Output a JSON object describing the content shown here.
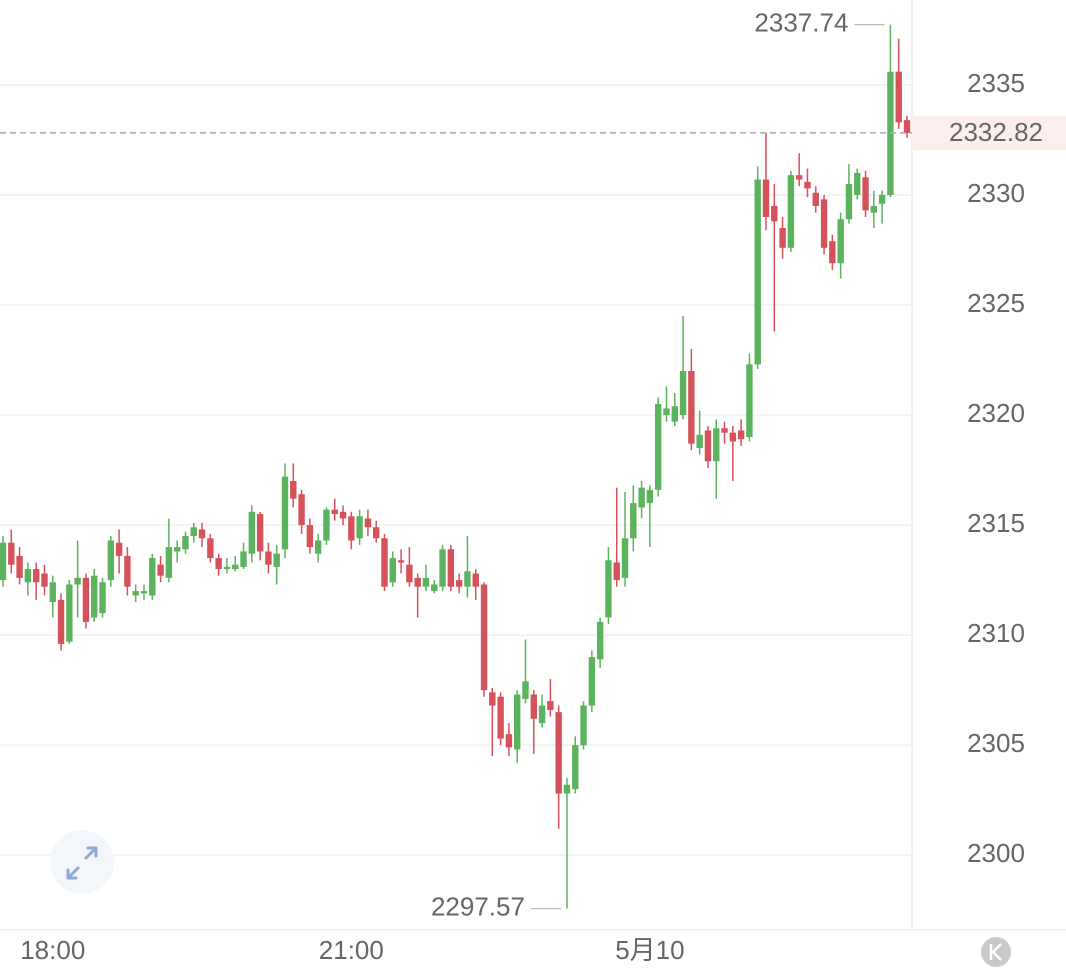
{
  "chart_data": {
    "type": "candlestick",
    "categories": [
      null,
      null,
      null,
      null,
      null,
      null,
      "18:00",
      null,
      null,
      null,
      null,
      null,
      null,
      null,
      null,
      null,
      null,
      null,
      null,
      null,
      null,
      null,
      null,
      null,
      null,
      null,
      null,
      null,
      null,
      null,
      null,
      null,
      null,
      null,
      null,
      null,
      null,
      null,
      null,
      null,
      null,
      null,
      "21:00",
      null,
      null,
      null,
      null,
      null,
      null,
      null,
      null,
      null,
      null,
      null,
      null,
      null,
      null,
      null,
      null,
      null,
      null,
      null,
      null,
      null,
      null,
      null,
      null,
      null,
      null,
      null,
      null,
      null,
      null,
      null,
      null,
      null,
      null,
      null,
      "5月10",
      null,
      null,
      null,
      null,
      null,
      null,
      null,
      null,
      null,
      null,
      null,
      null,
      null,
      null,
      null,
      null,
      null,
      null,
      null,
      null,
      null,
      null,
      null,
      null,
      null,
      null,
      null,
      null,
      null,
      null,
      null
    ],
    "open": [
      2312.5,
      2314.2,
      2313.6,
      2312.4,
      2313,
      2312.8,
      2311.5,
      2311.6,
      2309.7,
      2312.3,
      2312.6,
      2310.8,
      2311,
      2312.5,
      2314.2,
      2313.6,
      2311.8,
      2311.9,
      2311.8,
      2313.2,
      2312.6,
      2313.8,
      2313.9,
      2314.5,
      2314.8,
      2314.4,
      2313.5,
      2313,
      2313,
      2313.1,
      2313.7,
      2315.5,
      2313.8,
      2313.1,
      2313.9,
      2317,
      2316.4,
      2315,
      2313.7,
      2314.3,
      2315.7,
      2315.6,
      2315.4,
      2314.4,
      2315.3,
      2314.9,
      2314.4,
      2312.4,
      2313.4,
      2313.2,
      2312.6,
      2312.2,
      2312,
      2312.2,
      2313.9,
      2312.5,
      2312.2,
      2312.8,
      2312.3,
      2307.4,
      2307.2,
      2305.5,
      2304.8,
      2307.1,
      2307.3,
      2306,
      2307,
      2306.5,
      2302.8,
      2303,
      2305,
      2306.8,
      2308.9,
      2310.8,
      2313.3,
      2312.6,
      2314.4,
      2315.8,
      2316,
      2316.6,
      2320,
      2319.7,
      2320,
      2322,
      2318.5,
      2319.3,
      2317.9,
      2319.4,
      2319.2,
      2319.3,
      2319,
      2322.3,
      2330.7,
      2329.5,
      2328.5,
      2327.6,
      2330.9,
      2330.6,
      2330.1,
      2329.8,
      2327.9,
      2326.9,
      2328.9,
      2330,
      2330.8,
      2329.2,
      2329.6,
      2330,
      2335.6,
      2333.4
    ],
    "high": [
      2314.5,
      2314.8,
      2314,
      2313.3,
      2313.3,
      2313.2,
      2312.7,
      2311.9,
      2312.5,
      2314.3,
      2312.8,
      2313,
      2312.6,
      2314.5,
      2314.8,
      2314,
      2312.3,
      2312.3,
      2313.7,
      2313.6,
      2315.3,
      2314.3,
      2314.7,
      2315.1,
      2315.1,
      2314.6,
      2313.7,
      2313.5,
      2313.6,
      2314.2,
      2315.9,
      2315.6,
      2314.2,
      2314.1,
      2317.8,
      2317.8,
      2316.6,
      2315.3,
      2314.6,
      2315.8,
      2316.2,
      2315.9,
      2315.6,
      2315.7,
      2315.7,
      2315.2,
      2314.6,
      2313.8,
      2313.9,
      2314,
      2312.8,
      2313.2,
      2312.5,
      2314.1,
      2314.1,
      2312.8,
      2314.5,
      2313,
      2312.4,
      2307.6,
      2307.4,
      2306,
      2307.5,
      2309.8,
      2307.5,
      2307.3,
      2308,
      2306.8,
      2303.5,
      2305.4,
      2307,
      2309.3,
      2310.8,
      2314,
      2316.7,
      2316.5,
      2316.8,
      2317,
      2316.8,
      2320.8,
      2321.3,
      2321,
      2324.5,
      2323,
      2320.2,
      2319.5,
      2319.8,
      2319.7,
      2319.5,
      2319.8,
      2322.8,
      2331.3,
      2332.82,
      2330.5,
      2329,
      2331.1,
      2331.9,
      2331.2,
      2330.4,
      2330,
      2328.2,
      2329.2,
      2331.4,
      2331.2,
      2331.1,
      2330.2,
      2330.2,
      2337.74,
      2337.1,
      2333.6
    ],
    "low": [
      2312.2,
      2312.8,
      2312.3,
      2311.8,
      2311.6,
      2311.8,
      2310.8,
      2309.3,
      2309.6,
      2310.8,
      2310.3,
      2310.6,
      2310.8,
      2312.2,
      2312.8,
      2311.8,
      2311.5,
      2311.6,
      2311.6,
      2312.4,
      2312.4,
      2313.3,
      2313.7,
      2314.2,
      2314,
      2313.3,
      2312.7,
      2312.8,
      2312.9,
      2313,
      2313.3,
      2313.4,
      2312.8,
      2312.3,
      2313.5,
      2315.8,
      2314.6,
      2313.7,
      2313.3,
      2314.1,
      2315.2,
      2315,
      2313.9,
      2314.1,
      2314.5,
      2314.2,
      2312,
      2312.2,
      2312.8,
      2312.2,
      2310.8,
      2312,
      2311.9,
      2312,
      2312,
      2311.9,
      2311.7,
      2311.6,
      2307.2,
      2304.5,
      2305,
      2304.5,
      2304.2,
      2306.9,
      2304.6,
      2305.8,
      2306.3,
      2301.2,
      2297.57,
      2302.8,
      2304.8,
      2306.5,
      2308.5,
      2310.5,
      2312.2,
      2312.2,
      2313.8,
      2315.3,
      2314,
      2316.3,
      2319.7,
      2319.5,
      2319.8,
      2318.4,
      2318.2,
      2317.6,
      2316.2,
      2318.7,
      2317,
      2318.6,
      2318.8,
      2322.1,
      2328.4,
      2323.8,
      2327.1,
      2327.4,
      2330.4,
      2329.9,
      2329.2,
      2327.3,
      2326.6,
      2326.2,
      2328.7,
      2329.8,
      2329,
      2328.5,
      2328.7,
      2329.9,
      2333,
      2332.6
    ],
    "close": [
      2314.2,
      2313.2,
      2312.6,
      2313,
      2312.4,
      2312.2,
      2312.4,
      2309.6,
      2312.3,
      2312.6,
      2310.6,
      2312.7,
      2312.4,
      2314.3,
      2313.6,
      2312.2,
      2312,
      2312,
      2313.5,
      2312.7,
      2314,
      2314,
      2314.5,
      2314.9,
      2314.4,
      2313.5,
      2313,
      2313.1,
      2313.2,
      2313.8,
      2315.6,
      2313.8,
      2313.2,
      2313.7,
      2317.2,
      2316.2,
      2315,
      2314,
      2314.3,
      2315.7,
      2315.5,
      2315.3,
      2314.3,
      2315.4,
      2314.9,
      2314.4,
      2312.2,
      2313.5,
      2313.3,
      2312.4,
      2312.2,
      2312.6,
      2312.3,
      2313.9,
      2312.2,
      2312.2,
      2312.9,
      2312.2,
      2307.5,
      2306.8,
      2305.3,
      2304.9,
      2307.3,
      2307.9,
      2306.2,
      2306.8,
      2306.6,
      2302.8,
      2303.2,
      2305,
      2306.8,
      2309,
      2310.6,
      2313.4,
      2312.5,
      2314.4,
      2316,
      2316.7,
      2316.6,
      2320.5,
      2320.3,
      2320.4,
      2322,
      2318.7,
      2319.1,
      2317.9,
      2319.4,
      2319.2,
      2318.8,
      2318.9,
      2322.3,
      2330.7,
      2329,
      2328.8,
      2327.6,
      2330.9,
      2330.7,
      2330.3,
      2329.5,
      2327.6,
      2326.9,
      2328.9,
      2330.5,
      2331,
      2329.3,
      2329.5,
      2330,
      2335.6,
      2333.3,
      2332.82
    ],
    "up_color": "#5cb35e",
    "down_color": "#d6525b",
    "ylim": [
      2296.6,
      2338.86
    ],
    "yticks": [
      2300,
      2305,
      2310,
      2315,
      2320,
      2325,
      2330,
      2335
    ],
    "grid": true
  }
}
